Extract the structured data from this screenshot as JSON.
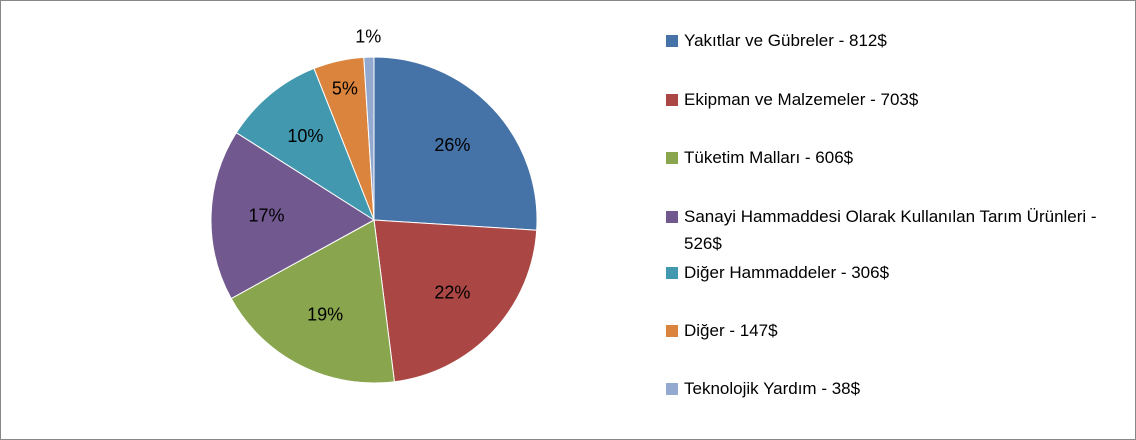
{
  "chart_data": {
    "type": "pie",
    "categories": [
      "Yakıtlar ve Gübreler - 812$",
      "Ekipman ve Malzemeler - 703$",
      "Tüketim Malları - 606$",
      "Sanayi Hammaddesi Olarak Kullanılan Tarım Ürünleri - 526$",
      "Diğer Hammaddeler - 306$",
      "Diğer - 147$",
      "Teknolojik Yardım - 38$"
    ],
    "values": [
      26,
      22,
      19,
      17,
      10,
      5,
      1
    ],
    "value_labels": [
      "26%",
      "22%",
      "19%",
      "17%",
      "10%",
      "5%",
      "1%"
    ],
    "colors": [
      "#4572a7",
      "#aa4643",
      "#89a54e",
      "#71588f",
      "#4198af",
      "#db843d",
      "#93a9cf"
    ],
    "legend": "right"
  }
}
